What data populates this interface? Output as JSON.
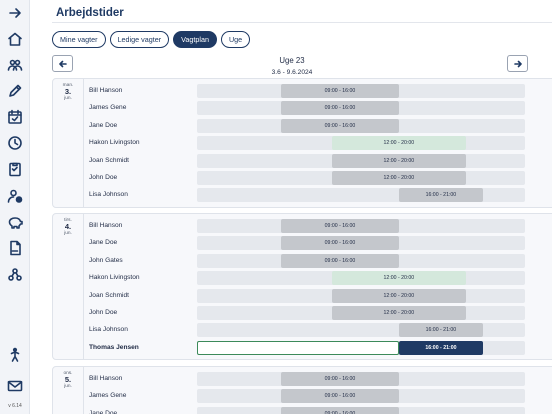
{
  "sidebar": {
    "icons": [
      "collapse-arrow-icon",
      "home-icon",
      "team-icon",
      "pencil-icon",
      "calendar-check-icon",
      "clock-icon",
      "clipboard-icon",
      "user-alert-icon",
      "piggy-bank-icon",
      "pdf-icon",
      "org-chart-icon",
      "accessibility-icon",
      "mail-icon"
    ],
    "version": "v 6.14"
  },
  "header": {
    "title": "Arbejdstider"
  },
  "tabs": [
    {
      "label": "Mine vagter",
      "active": false
    },
    {
      "label": "Ledige vagter",
      "active": false
    },
    {
      "label": "Vagtplan",
      "active": true
    },
    {
      "label": "Uge",
      "active": false
    }
  ],
  "week": {
    "title": "Uge 23",
    "range": "3.6 - 9.6.2024"
  },
  "days": [
    {
      "dow": "man.",
      "num": "3.",
      "mon": "jun.",
      "rows": [
        {
          "name": "Bill Hanson",
          "shift": "09:00 - 16:00",
          "start": 9,
          "end": 16,
          "style": "gray"
        },
        {
          "name": "James Gene",
          "shift": "09:00 - 16:00",
          "start": 9,
          "end": 16,
          "style": "gray"
        },
        {
          "name": "Jane Doe",
          "shift": "09:00 - 16:00",
          "start": 9,
          "end": 16,
          "style": "gray"
        },
        {
          "name": "Hakon Livingston",
          "shift": "12:00 - 20:00",
          "start": 12,
          "end": 20,
          "style": "green"
        },
        {
          "name": "Joan Schmidt",
          "shift": "12:00 - 20:00",
          "start": 12,
          "end": 20,
          "style": "gray"
        },
        {
          "name": "John Doe",
          "shift": "12:00 - 20:00",
          "start": 12,
          "end": 20,
          "style": "gray"
        },
        {
          "name": "Lisa Johnson",
          "shift": "16:00 - 21:00",
          "start": 16,
          "end": 21,
          "style": "gray"
        }
      ]
    },
    {
      "dow": "tirs.",
      "num": "4.",
      "mon": "jun.",
      "rows": [
        {
          "name": "Bill Hanson",
          "shift": "09:00 - 16:00",
          "start": 9,
          "end": 16,
          "style": "gray"
        },
        {
          "name": "Jane Doe",
          "shift": "09:00 - 16:00",
          "start": 9,
          "end": 16,
          "style": "gray"
        },
        {
          "name": "John Gates",
          "shift": "09:00 - 16:00",
          "start": 9,
          "end": 16,
          "style": "gray"
        },
        {
          "name": "Hakon Livingston",
          "shift": "12:00 - 20:00",
          "start": 12,
          "end": 20,
          "style": "green"
        },
        {
          "name": "Joan Schmidt",
          "shift": "12:00 - 20:00",
          "start": 12,
          "end": 20,
          "style": "gray"
        },
        {
          "name": "John Doe",
          "shift": "12:00 - 20:00",
          "start": 12,
          "end": 20,
          "style": "gray"
        },
        {
          "name": "Lisa Johnson",
          "shift": "16:00 - 21:00",
          "start": 16,
          "end": 21,
          "style": "gray"
        },
        {
          "name": "Thomas Jensen",
          "shift": "16:00 - 21:00",
          "start": 16,
          "end": 21,
          "style": "navy",
          "bold": true
        }
      ]
    },
    {
      "dow": "ons.",
      "num": "5.",
      "mon": "jun.",
      "rows": [
        {
          "name": "Bill Hanson",
          "shift": "09:00 - 16:00",
          "start": 9,
          "end": 16,
          "style": "gray"
        },
        {
          "name": "James Gene",
          "shift": "09:00 - 16:00",
          "start": 9,
          "end": 16,
          "style": "gray"
        },
        {
          "name": "Jane Doe",
          "shift": "09:00 - 16:00",
          "start": 9,
          "end": 16,
          "style": "gray"
        }
      ]
    }
  ],
  "colors": {
    "accent": "#1f3a64",
    "shift_gray": "#c4c7cc",
    "shift_green": "#d4e8dc",
    "track": "#e5e8ed"
  }
}
